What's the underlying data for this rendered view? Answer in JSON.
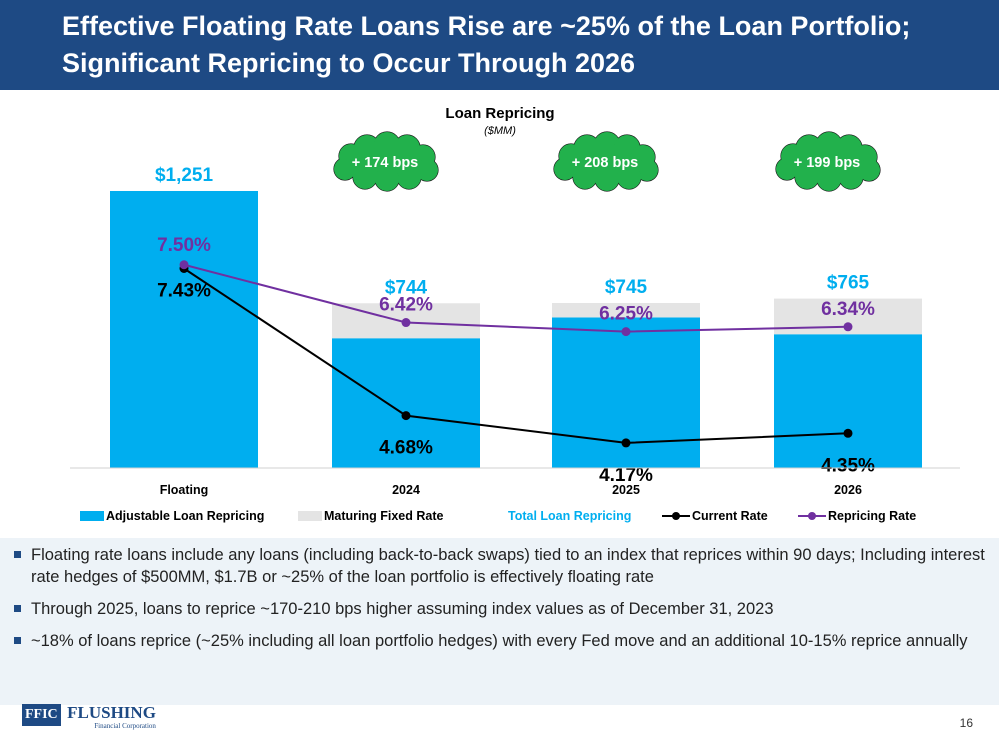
{
  "slide": {
    "title_line1": "Effective Floating Rate Loans Rise are ~25% of the Loan Portfolio;",
    "title_line2": "Significant Repricing to Occur Through 2026",
    "page_number": "16"
  },
  "colors": {
    "title_bar": "#1e4a84",
    "adjustable": "#00aeef",
    "maturing": "#e4e4e4",
    "current_rate": "#000000",
    "repricing_rate": "#7030a0",
    "total_label": "#00aeef",
    "cloud": "#22b14c",
    "bullet_panel": "#edf3f8"
  },
  "chart_data": {
    "type": "bar",
    "stacked": true,
    "title": "Loan Repricing",
    "subtitle": "($MM)",
    "categories": [
      "Floating",
      "2024",
      "2025",
      "2026"
    ],
    "series": [
      {
        "name": "Adjustable Loan Repricing",
        "values": [
          1251,
          586,
          680,
          604
        ]
      },
      {
        "name": "Maturing Fixed Rate",
        "values": [
          0,
          158,
          65,
          161
        ]
      }
    ],
    "totals": {
      "name": "Total Loan Repricing",
      "values": [
        1251,
        744,
        745,
        765
      ],
      "labels": [
        "$1,251",
        "$744",
        "$745",
        "$765"
      ]
    },
    "lines": [
      {
        "name": "Current Rate",
        "values": [
          7.43,
          4.68,
          4.17,
          4.35
        ],
        "labels": [
          "7.43%",
          "4.68%",
          "4.17%",
          "4.35%"
        ]
      },
      {
        "name": "Repricing Rate",
        "values": [
          7.5,
          6.42,
          6.25,
          6.34
        ],
        "labels": [
          "7.50%",
          "6.42%",
          "6.25%",
          "6.34%"
        ]
      }
    ],
    "annotations": [
      "+ 174 bps",
      "+ 208 bps",
      "+ 199 bps"
    ],
    "ylim": [
      0,
      1400
    ],
    "grid": false,
    "legend_position": "bottom"
  },
  "bullets": [
    "Floating rate loans include any loans (including back-to-back swaps) tied to an index that reprices within 90 days; Including interest rate hedges of $500MM, $1.7B or ~25% of the loan portfolio  is effectively floating rate",
    "Through 2025, loans to reprice ~170-210 bps higher assuming index values as of December 31, 2023",
    "~18% of loans reprice (~25% including all loan portfolio hedges) with every Fed move and an additional 10-15% reprice annually"
  ],
  "logo": {
    "box_text": "FFIC",
    "word": "FLUSHING",
    "subtext": "Financial Corporation"
  }
}
